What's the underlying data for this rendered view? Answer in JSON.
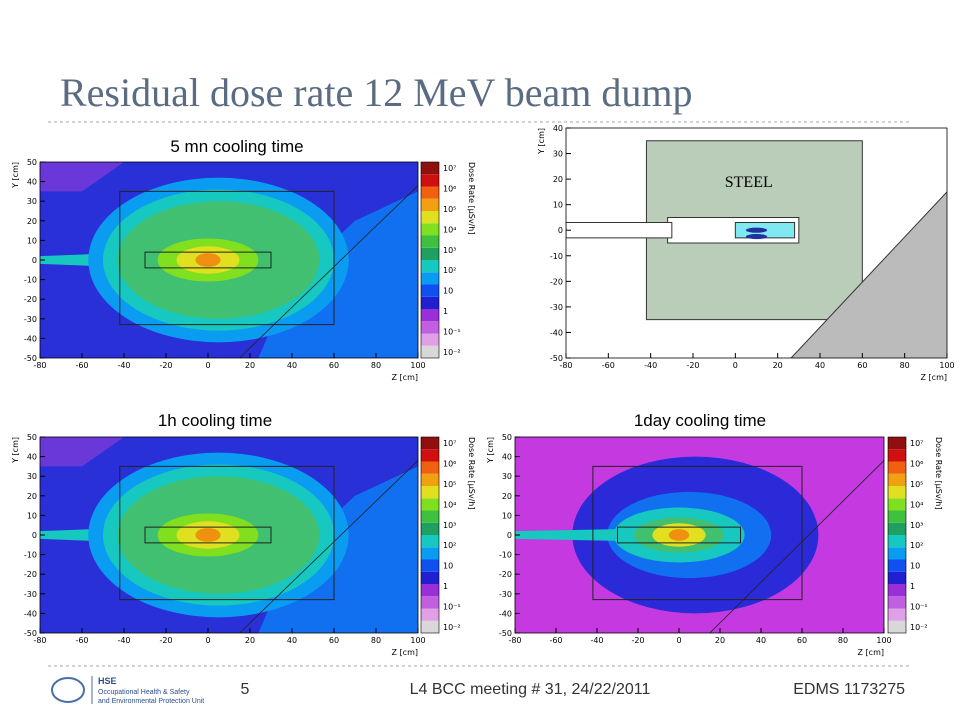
{
  "title": "Residual dose rate 12 MeV beam dump",
  "plots": [
    {
      "caption": "5 mn cooling time",
      "xlabel": "Z [cm]",
      "ylabel": "Y [cm]",
      "xlim": [
        -80,
        100
      ],
      "ylim": [
        -50,
        50
      ],
      "xticks": [
        -80,
        -60,
        -40,
        -20,
        0,
        20,
        40,
        60,
        80,
        100
      ],
      "yticks": [
        -50,
        -40,
        -30,
        -20,
        -10,
        0,
        10,
        20,
        30,
        40,
        50
      ],
      "colorbar_label": "Dose Rate [µSv/h]",
      "colorbar_ticks": [
        "10⁻²",
        "10⁻¹",
        "1",
        "10",
        "10²",
        "10³",
        "10⁴",
        "10⁵",
        "10⁶",
        "10⁷"
      ]
    },
    {
      "annotation": "STEEL",
      "xlabel": "Z [cm]",
      "ylabel": "Y [cm]",
      "xlim": [
        -80,
        100
      ],
      "ylim": [
        -50,
        40
      ],
      "xticks": [
        -80,
        -60,
        -40,
        -20,
        0,
        20,
        40,
        60,
        80,
        100
      ],
      "yticks": [
        -50,
        -40,
        -30,
        -20,
        -10,
        0,
        10,
        20,
        30,
        40
      ]
    },
    {
      "caption": "1h cooling time",
      "xlabel": "Z [cm]",
      "ylabel": "Y [cm]",
      "xlim": [
        -80,
        100
      ],
      "ylim": [
        -50,
        50
      ],
      "xticks": [
        -80,
        -60,
        -40,
        -20,
        0,
        20,
        40,
        60,
        80,
        100
      ],
      "yticks": [
        -50,
        -40,
        -30,
        -20,
        -10,
        0,
        10,
        20,
        30,
        40,
        50
      ],
      "colorbar_label": "Dose Rate [µSv/h]",
      "colorbar_ticks": [
        "10⁻²",
        "10⁻¹",
        "1",
        "10",
        "10²",
        "10³",
        "10⁴",
        "10⁵",
        "10⁶",
        "10⁷"
      ]
    },
    {
      "caption": "1day cooling time",
      "xlabel": "Z [cm]",
      "ylabel": "Y [cm]",
      "xlim": [
        -80,
        100
      ],
      "ylim": [
        -50,
        50
      ],
      "xticks": [
        -80,
        -60,
        -40,
        -20,
        0,
        20,
        40,
        60,
        80,
        100
      ],
      "yticks": [
        -50,
        -40,
        -30,
        -20,
        -10,
        0,
        10,
        20,
        30,
        40,
        50
      ],
      "colorbar_label": "Dose Rate [µSv/h]",
      "colorbar_ticks": [
        "10⁻²",
        "10⁻¹",
        "1",
        "10",
        "10²",
        "10³",
        "10⁴",
        "10⁵",
        "10⁶",
        "10⁷"
      ]
    }
  ],
  "footer": {
    "logo_title": "HSE",
    "logo_line1": "Occupational Health & Safety",
    "logo_line2": "and Environmental Protection Unit",
    "page": "5",
    "meeting": "L4 BCC meeting # 31, 24/22/2011",
    "edms": "EDMS 1173275"
  }
}
